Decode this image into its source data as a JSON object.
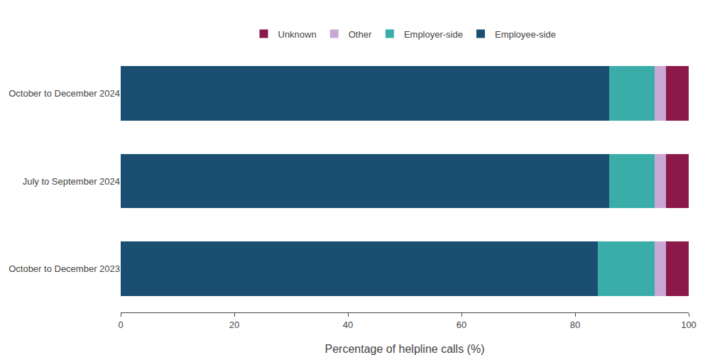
{
  "chart_data": {
    "type": "bar",
    "orientation": "horizontal",
    "stacked": true,
    "categories": [
      "October to December 2024",
      "July to September 2024",
      "October to December 2023"
    ],
    "series": [
      {
        "name": "Employee-side",
        "color": "#1B4F72",
        "values": [
          86,
          86,
          84
        ]
      },
      {
        "name": "Employer-side",
        "color": "#3AADA8",
        "values": [
          8,
          8,
          10
        ]
      },
      {
        "name": "Other",
        "color": "#C9A8D4",
        "values": [
          2,
          2,
          2
        ]
      },
      {
        "name": "Unknown",
        "color": "#8B1A4A",
        "values": [
          4,
          4,
          4
        ]
      }
    ],
    "xlabel": "Percentage of helpline calls (%)",
    "xlim": [
      0,
      100
    ],
    "xticks": [
      0,
      20,
      40,
      60,
      80,
      100
    ],
    "grid": false,
    "legend": "top"
  }
}
